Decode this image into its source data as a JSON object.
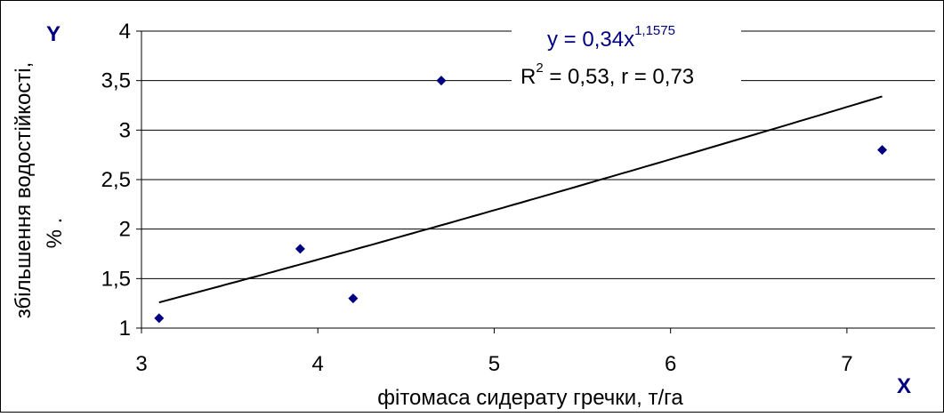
{
  "chart_data": {
    "type": "scatter",
    "xlabel": "фітомаса сидерату гречки, т/га",
    "ylabel_line1": "збільшення водостійкості,",
    "ylabel_line2": "%  .",
    "x_axis_letter": "X",
    "y_axis_letter": "Y",
    "xlim": [
      3,
      7.5
    ],
    "ylim": [
      1,
      4
    ],
    "x_ticks": [
      3,
      4,
      5,
      6,
      7
    ],
    "x_tick_labels": [
      "3",
      "4",
      "5",
      "6",
      "7"
    ],
    "y_ticks": [
      1,
      1.5,
      2,
      2.5,
      3,
      3.5,
      4
    ],
    "y_tick_labels": [
      "1",
      "1,5",
      "2",
      "2,5",
      "3",
      "3,5",
      "4"
    ],
    "grid": "horizontal",
    "points": [
      {
        "x": 3.1,
        "y": 1.1
      },
      {
        "x": 3.9,
        "y": 1.8
      },
      {
        "x": 4.2,
        "y": 1.3
      },
      {
        "x": 4.7,
        "y": 3.5
      },
      {
        "x": 7.2,
        "y": 2.8
      }
    ],
    "trendline": {
      "type": "power",
      "a": 0.34,
      "b": 1.1575,
      "x_range": [
        3.1,
        7.2
      ]
    },
    "equation": {
      "prefix": "y = 0,34x",
      "exponent": "1,1575"
    },
    "stats": {
      "r_prefix": "R",
      "r_exponent": "2",
      "r_suffix": " = 0,53, r = 0,73"
    },
    "colors": {
      "marker": "#000080",
      "trendline": "#000000",
      "grid": "#000000",
      "axis_letters": "#000080",
      "equation": "#000080",
      "text": "#000000"
    }
  }
}
